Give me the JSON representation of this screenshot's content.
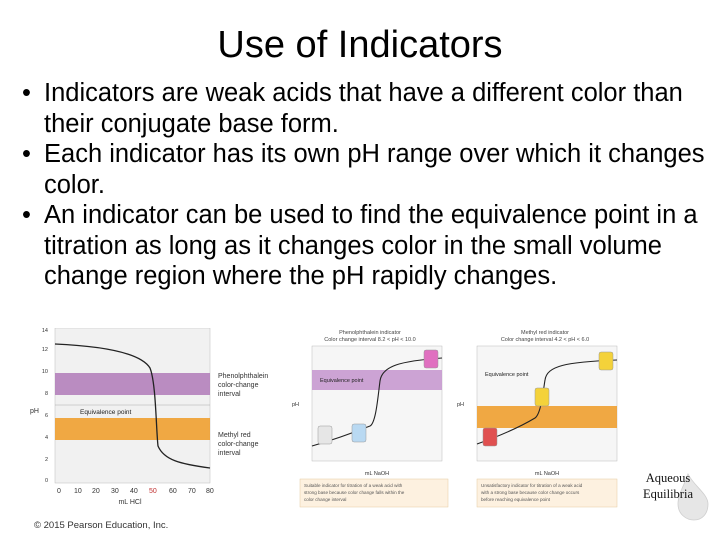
{
  "title": "Use of Indicators",
  "bullets": [
    "Indicators are weak acids that have a different color than their conjugate base form.",
    "Each indicator has its own pH range over which it changes color.",
    "An indicator can be used to find the equivalence point in a titration as long as it changes color in the small volume change region where the pH rapidly changes."
  ],
  "figure_left": {
    "ylabel": "pH",
    "xlabel": "mL HCl",
    "y_ticks": [
      "0",
      "2",
      "4",
      "6",
      "8",
      "10",
      "12",
      "14"
    ],
    "x_ticks": [
      "0",
      "10",
      "20",
      "30",
      "40",
      "50",
      "60",
      "70",
      "80"
    ],
    "phenol_label_1": "Phenolphthalein",
    "phenol_label_2": "color-change",
    "phenol_label_3": "interval",
    "equiv_label": "Equivalence point",
    "methyl_label_1": "Methyl red",
    "methyl_label_2": "color-change",
    "methyl_label_3": "interval",
    "colors": {
      "phenol_band": "#b07ab8",
      "methyl_band": "#f0a030",
      "curve": "#222222"
    }
  },
  "figure_middle": {
    "header_1": "Phenolphthalein indicator",
    "header_2": "Color change interval 8.2 < pH < 10.0",
    "ylabel": "pH",
    "xlabel": "mL NaOH",
    "equiv_label": "Equivalence point",
    "caption_1": "Suitable indicator for titration of a weak acid with",
    "caption_2": "strong base because color change falls within the",
    "caption_3": "color change interval"
  },
  "figure_right": {
    "header_1": "Methyl red indicator",
    "header_2": "Color change interval 4.2 < pH < 6.0",
    "ylabel": "pH",
    "xlabel": "mL NaOH",
    "equiv_label": "Equivalence point",
    "caption_1": "Unsatisfactory indicator for titration of a weak acid",
    "caption_2": "with a strong base because color change occurs",
    "caption_3": "before reaching equivalence point"
  },
  "copyright": "© 2015 Pearson Education, Inc.",
  "logo_line_1": "Aqueous",
  "logo_line_2": "Equilibria"
}
